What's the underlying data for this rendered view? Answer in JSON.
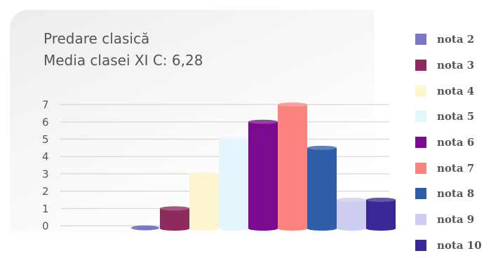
{
  "chart_data": {
    "type": "bar",
    "title": "Predare clasică",
    "subtitle": "Media clasei XI C: 6,28",
    "categories": [
      "nota 2",
      "nota 3",
      "nota 4",
      "nota 5",
      "nota 6",
      "nota 7",
      "nota 8",
      "nota 9",
      "nota 10"
    ],
    "values": [
      0,
      1,
      3,
      5,
      6,
      7,
      4.5,
      1.5,
      1.5
    ],
    "colors": [
      "#7b79c6",
      "#8f2a5e",
      "#fdf5cf",
      "#e3f6fb",
      "#7a0a8e",
      "#fb857e",
      "#2f5ea8",
      "#cdcdf0",
      "#3a2795"
    ],
    "yticks": [
      "0",
      "1",
      "2",
      "3",
      "4",
      "5",
      "6",
      "7"
    ],
    "ylim": [
      0,
      7
    ],
    "grid": true,
    "legend": "right",
    "xlabel": "",
    "ylabel": ""
  }
}
